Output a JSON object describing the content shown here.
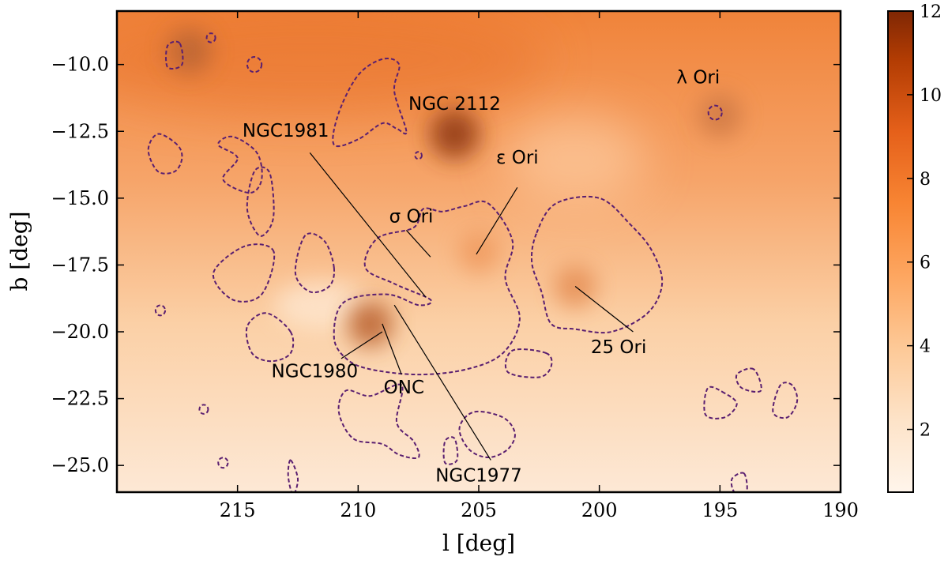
{
  "chart_data": {
    "type": "heatmap",
    "title": "",
    "xlabel": "l [deg]",
    "ylabel": "b [deg]",
    "xlim": [
      220,
      190
    ],
    "ylim": [
      -26,
      -8
    ],
    "x_ticks": [
      215,
      210,
      205,
      200,
      195,
      190
    ],
    "x_tick_labels": [
      "215",
      "210",
      "205",
      "200",
      "195",
      "190"
    ],
    "y_ticks": [
      -10.0,
      -12.5,
      -15.0,
      -17.5,
      -20.0,
      -22.5,
      -25.0
    ],
    "y_tick_labels": [
      "−10.0",
      "−12.5",
      "−15.0",
      "−17.5",
      "−20.0",
      "−22.5",
      "−25.0"
    ],
    "colorbar": {
      "colormap": "Oranges",
      "range": [
        0.5,
        12
      ],
      "ticks": [
        2,
        4,
        6,
        8,
        10,
        12
      ],
      "tick_labels": [
        "2",
        "4",
        "6",
        "8",
        "10",
        "12"
      ]
    },
    "colors": {
      "low": "#fff5eb",
      "mid": "#f5a064",
      "high": "#7f2704",
      "contour": "#5a1f70"
    },
    "features": [
      {
        "l": 206.0,
        "b": -12.6,
        "value": 11.0
      },
      {
        "l": 209.5,
        "b": -19.7,
        "value": 9.0
      },
      {
        "l": 195.0,
        "b": -11.9,
        "value": 8.0
      },
      {
        "l": 217.0,
        "b": -9.5,
        "value": 9.0
      },
      {
        "l": 201.0,
        "b": -18.3,
        "value": 7.0
      },
      {
        "l": 205.0,
        "b": -17.0,
        "value": 6.5
      }
    ],
    "annotations": [
      {
        "text": "NGC 2112",
        "l": 206.0,
        "b": -11.7,
        "anchor": "middle",
        "line": null
      },
      {
        "text": "λ Ori",
        "l": 195.9,
        "b": -10.7,
        "anchor": "middle",
        "line": null
      },
      {
        "text": "NGC1981",
        "l": 213.0,
        "b": -12.7,
        "anchor": "middle",
        "line": {
          "from": [
            212.0,
            -13.3
          ],
          "to": [
            207.2,
            -18.7
          ]
        }
      },
      {
        "text": "ε Ori",
        "l": 203.4,
        "b": -13.7,
        "anchor": "middle",
        "line": {
          "from": [
            203.4,
            -14.6
          ],
          "to": [
            205.1,
            -17.1
          ]
        }
      },
      {
        "text": "σ Ori",
        "l": 207.8,
        "b": -15.9,
        "anchor": "middle",
        "line": {
          "from": [
            208.0,
            -16.2
          ],
          "to": [
            207.0,
            -17.2
          ]
        }
      },
      {
        "text": "NGC1980",
        "l": 211.8,
        "b": -21.7,
        "anchor": "middle",
        "line": {
          "from": [
            210.7,
            -21.0
          ],
          "to": [
            209.0,
            -20.0
          ]
        }
      },
      {
        "text": "ONC",
        "l": 208.1,
        "b": -22.3,
        "anchor": "middle",
        "line": {
          "from": [
            208.2,
            -21.6
          ],
          "to": [
            209.0,
            -19.7
          ]
        }
      },
      {
        "text": "NGC1977",
        "l": 205.0,
        "b": -25.6,
        "anchor": "middle",
        "line": {
          "from": [
            204.5,
            -24.8
          ],
          "to": [
            208.5,
            -19.0
          ]
        }
      },
      {
        "text": "25 Ori",
        "l": 199.2,
        "b": -20.8,
        "anchor": "middle",
        "line": {
          "from": [
            198.6,
            -20.0
          ],
          "to": [
            201.0,
            -18.3
          ]
        }
      }
    ],
    "contours": [
      [
        [
          208.0,
          -12.5
        ],
        [
          208.5,
          -11.0
        ],
        [
          208.3,
          -10.0
        ],
        [
          209.0,
          -9.8
        ],
        [
          210.0,
          -10.4
        ],
        [
          210.8,
          -11.8
        ],
        [
          211.0,
          -13.0
        ],
        [
          210.0,
          -12.8
        ],
        [
          209.0,
          -12.2
        ],
        [
          208.4,
          -12.4
        ]
      ],
      [
        [
          202.6,
          -16.3
        ],
        [
          201.8,
          -15.2
        ],
        [
          200.0,
          -15.0
        ],
        [
          198.7,
          -16.0
        ],
        [
          197.8,
          -17.0
        ],
        [
          197.4,
          -18.2
        ],
        [
          198.0,
          -19.3
        ],
        [
          199.5,
          -20.0
        ],
        [
          201.0,
          -19.9
        ],
        [
          202.0,
          -19.7
        ],
        [
          202.4,
          -18.5
        ],
        [
          202.8,
          -17.4
        ]
      ],
      [
        [
          206.5,
          -15.5
        ],
        [
          207.3,
          -15.4
        ],
        [
          207.7,
          -16.1
        ],
        [
          209.2,
          -16.5
        ],
        [
          209.7,
          -17.6
        ],
        [
          208.5,
          -18.2
        ],
        [
          207.0,
          -18.8
        ],
        [
          207.5,
          -19.0
        ],
        [
          208.8,
          -18.6
        ],
        [
          210.6,
          -18.9
        ],
        [
          211.0,
          -20.2
        ],
        [
          210.5,
          -21.0
        ],
        [
          209.5,
          -21.4
        ],
        [
          207.5,
          -21.6
        ],
        [
          205.5,
          -21.4
        ],
        [
          204.0,
          -20.8
        ],
        [
          203.3,
          -19.5
        ],
        [
          203.9,
          -18.0
        ],
        [
          203.6,
          -16.6
        ],
        [
          204.6,
          -15.2
        ],
        [
          205.6,
          -15.3
        ]
      ],
      [
        [
          212.8,
          -20.0
        ],
        [
          213.8,
          -19.3
        ],
        [
          214.6,
          -19.8
        ],
        [
          214.4,
          -20.8
        ],
        [
          213.6,
          -21.1
        ],
        [
          212.8,
          -20.8
        ]
      ],
      [
        [
          213.5,
          -17.0
        ],
        [
          214.7,
          -16.8
        ],
        [
          216.0,
          -17.8
        ],
        [
          215.2,
          -18.8
        ],
        [
          214.0,
          -18.6
        ]
      ],
      [
        [
          211.0,
          -17.6
        ],
        [
          211.4,
          -16.6
        ],
        [
          212.2,
          -16.4
        ],
        [
          212.6,
          -17.8
        ],
        [
          212.0,
          -18.5
        ],
        [
          211.2,
          -18.3
        ]
      ],
      [
        [
          213.5,
          -15.2
        ],
        [
          213.7,
          -14.0
        ],
        [
          214.3,
          -14.0
        ],
        [
          214.6,
          -15.4
        ],
        [
          214.1,
          -16.4
        ],
        [
          213.6,
          -16.0
        ]
      ],
      [
        [
          215.0,
          -13.5
        ],
        [
          215.8,
          -13.0
        ],
        [
          215.2,
          -12.7
        ],
        [
          214.2,
          -13.3
        ],
        [
          214.0,
          -14.3
        ],
        [
          214.5,
          -14.8
        ],
        [
          215.6,
          -14.3
        ]
      ],
      [
        [
          217.5,
          -13.0
        ],
        [
          218.3,
          -12.6
        ],
        [
          218.7,
          -13.2
        ],
        [
          218.3,
          -14.0
        ],
        [
          217.6,
          -14.0
        ],
        [
          217.3,
          -13.5
        ]
      ],
      [
        [
          208.2,
          -22.0
        ],
        [
          209.5,
          -22.4
        ],
        [
          210.5,
          -22.2
        ],
        [
          210.8,
          -23.0
        ],
        [
          210.2,
          -24.0
        ],
        [
          209.0,
          -24.2
        ],
        [
          208.3,
          -24.6
        ],
        [
          207.5,
          -24.7
        ],
        [
          207.7,
          -24.1
        ],
        [
          208.4,
          -23.4
        ]
      ],
      [
        [
          204.0,
          -23.2
        ],
        [
          205.2,
          -23.0
        ],
        [
          205.8,
          -23.6
        ],
        [
          205.4,
          -24.4
        ],
        [
          204.6,
          -24.7
        ],
        [
          203.8,
          -24.4
        ],
        [
          203.5,
          -23.8
        ]
      ],
      [
        [
          202.2,
          -20.8
        ],
        [
          203.6,
          -20.7
        ],
        [
          203.8,
          -21.5
        ],
        [
          202.5,
          -21.7
        ],
        [
          202.0,
          -21.3
        ]
      ],
      [
        [
          194.8,
          -22.3
        ],
        [
          195.5,
          -22.1
        ],
        [
          195.6,
          -23.1
        ],
        [
          194.8,
          -23.2
        ],
        [
          194.3,
          -22.7
        ]
      ],
      [
        [
          193.6,
          -21.4
        ],
        [
          194.3,
          -21.6
        ],
        [
          194.1,
          -22.1
        ],
        [
          193.3,
          -22.2
        ]
      ],
      [
        [
          192.0,
          -22.0
        ],
        [
          192.5,
          -22.0
        ],
        [
          192.8,
          -23.0
        ],
        [
          192.2,
          -23.2
        ],
        [
          191.8,
          -22.6
        ]
      ],
      [
        [
          217.4,
          -9.2
        ],
        [
          217.9,
          -9.3
        ],
        [
          217.9,
          -10.1
        ],
        [
          217.3,
          -10.0
        ]
      ],
      [
        [
          206.0,
          -24.0
        ],
        [
          206.4,
          -24.1
        ],
        [
          206.4,
          -24.9
        ],
        [
          205.9,
          -24.8
        ]
      ],
      [
        [
          212.8,
          -24.8
        ],
        [
          212.9,
          -25.4
        ],
        [
          212.7,
          -26.1
        ],
        [
          212.5,
          -25.5
        ]
      ],
      [
        [
          194.0,
          -25.3
        ],
        [
          194.5,
          -25.5
        ],
        [
          194.4,
          -26.0
        ],
        [
          193.9,
          -26.0
        ]
      ]
    ],
    "small_contours": [
      {
        "l": 195.2,
        "b": -11.8,
        "r": 0.28
      },
      {
        "l": 214.3,
        "b": -10.0,
        "r": 0.3
      },
      {
        "l": 216.1,
        "b": -9.0,
        "r": 0.18
      },
      {
        "l": 218.2,
        "b": -19.2,
        "r": 0.2
      },
      {
        "l": 216.4,
        "b": -22.9,
        "r": 0.18
      },
      {
        "l": 215.6,
        "b": -24.9,
        "r": 0.2
      },
      {
        "l": 207.5,
        "b": -13.4,
        "r": 0.14
      }
    ],
    "grid": false,
    "legend": "none"
  }
}
